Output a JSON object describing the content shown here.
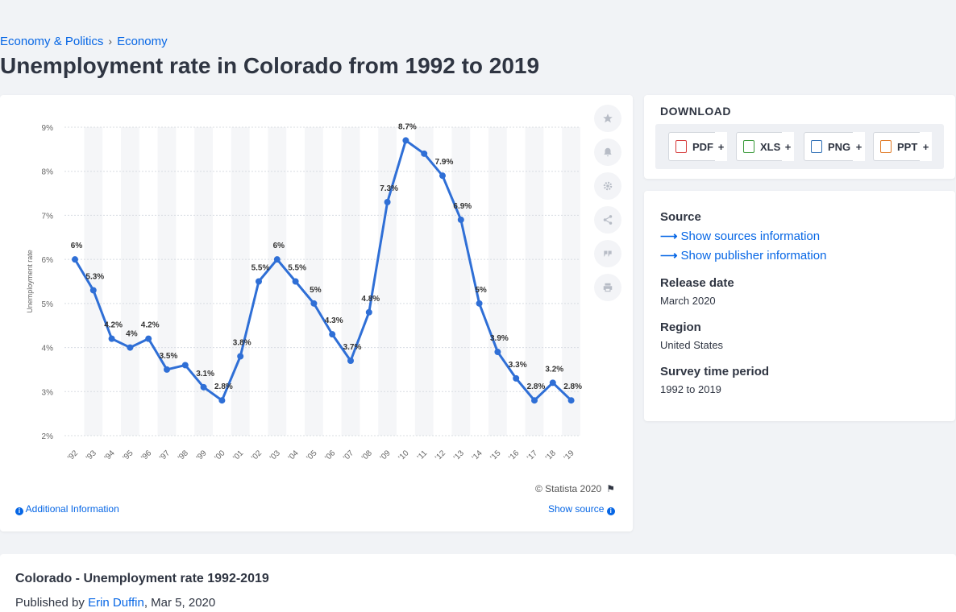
{
  "breadcrumb": {
    "item1": "Economy & Politics",
    "separator": "›",
    "item2": "Economy"
  },
  "page": {
    "title": "Unemployment rate in Colorado from 1992 to 2019"
  },
  "chart_toolbar": {
    "icons": [
      "star-icon",
      "bell-icon",
      "gear-icon",
      "share-icon",
      "quote-icon",
      "print-icon"
    ]
  },
  "chart_footer": {
    "copyright": "© Statista 2020",
    "additional_info": "Additional Information",
    "show_source": "Show source"
  },
  "download": {
    "title": "DOWNLOAD",
    "buttons": [
      {
        "label": "PDF",
        "color": "#d63b3b"
      },
      {
        "label": "XLS",
        "color": "#3a9a3a"
      },
      {
        "label": "PNG",
        "color": "#2f6fb5"
      },
      {
        "label": "PPT",
        "color": "#e07b27"
      }
    ],
    "plus": "+"
  },
  "meta": {
    "source_head": "Source",
    "sources_link": "Show sources information",
    "publisher_link": "Show publisher information",
    "release_head": "Release date",
    "release_val": "March 2020",
    "region_head": "Region",
    "region_val": "United States",
    "survey_head": "Survey time period",
    "survey_val": "1992 to 2019"
  },
  "bottom": {
    "title": "Colorado - Unemployment rate 1992-2019",
    "published_prefix": "Published by",
    "author": "Erin Duffin",
    "date": ", Mar 5, 2020"
  },
  "colors": {
    "accent": "#0666e5",
    "line": "#2f6fd6",
    "text": "#2f3542"
  },
  "chart_data": {
    "type": "line",
    "ylabel": "Unemployment rate",
    "ylim": [
      2,
      9
    ],
    "yticks": [
      "2%",
      "3%",
      "4%",
      "5%",
      "6%",
      "7%",
      "8%",
      "9%"
    ],
    "categories": [
      "'92",
      "'93",
      "'94",
      "'95",
      "'96",
      "'97",
      "'98",
      "'99",
      "'00",
      "'01",
      "'02",
      "'03",
      "'04",
      "'05",
      "'06",
      "'07",
      "'08",
      "'09",
      "'10",
      "'11",
      "'12",
      "'13",
      "'14",
      "'15",
      "'16",
      "'17",
      "'18",
      "'19"
    ],
    "values": [
      6,
      5.3,
      4.2,
      4,
      4.2,
      3.5,
      3.6,
      3.1,
      2.8,
      3.8,
      5.5,
      6,
      5.5,
      5,
      4.3,
      3.7,
      4.8,
      7.3,
      8.7,
      8.4,
      7.9,
      6.9,
      5,
      3.9,
      3.3,
      2.8,
      3.2,
      2.8
    ],
    "labels": [
      "6%",
      "5.3%",
      "4.2%",
      "4%",
      "4.2%",
      "3.5%",
      "",
      "3.1%",
      "2.8%",
      "3.8%",
      "5.5%",
      "6%",
      "5.5%",
      "5%",
      "4.3%",
      "3.7%",
      "4.8%",
      "7.3%",
      "8.7%",
      "",
      "7.9%",
      "6.9%",
      "5%",
      "3.9%",
      "3.3%",
      "2.8%",
      "3.2%",
      "2.8%"
    ],
    "grid": true,
    "legend": "none"
  }
}
